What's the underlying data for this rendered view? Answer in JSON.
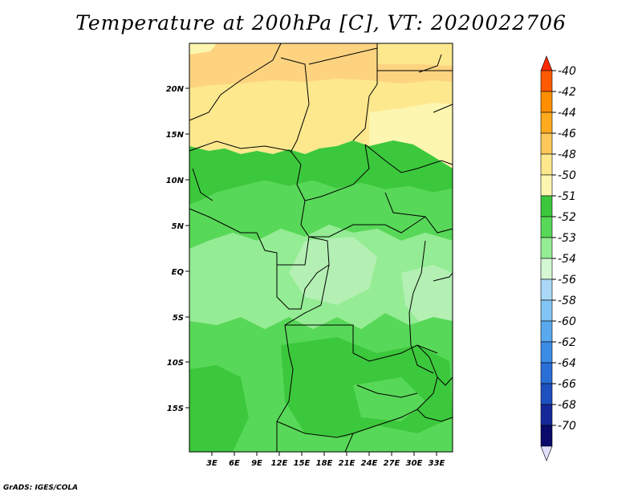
{
  "title": "Temperature at 200hPa [C], VT: 2020022706",
  "credit": "GrADS: IGES/COLA",
  "map": {
    "lat_labels": [
      "20N",
      "15N",
      "10N",
      "5N",
      "EQ",
      "5S",
      "10S",
      "15S"
    ],
    "lon_labels": [
      "3E",
      "6E",
      "9E",
      "12E",
      "15E",
      "18E",
      "21E",
      "24E",
      "27E",
      "30E",
      "33E"
    ]
  },
  "colorbar": {
    "labels": [
      "-40",
      "-42",
      "-44",
      "-46",
      "-48",
      "-50",
      "-51",
      "-52",
      "-53",
      "-54",
      "-56",
      "-58",
      "-60",
      "-62",
      "-64",
      "-66",
      "-68",
      "-70"
    ],
    "colors": [
      "#ff2a00",
      "#ff5a00",
      "#ff8f00",
      "#ffaa1f",
      "#fcc85a",
      "#fde88e",
      "#fdf6b0",
      "#3cc83c",
      "#58d858",
      "#94ec94",
      "#d4f8d4",
      "#aad8f6",
      "#82c4f4",
      "#5aa8ee",
      "#3c8ce6",
      "#2a6ed8",
      "#1e50c0",
      "#14289a",
      "#0a0a6a",
      "#e0e0fa"
    ]
  }
}
